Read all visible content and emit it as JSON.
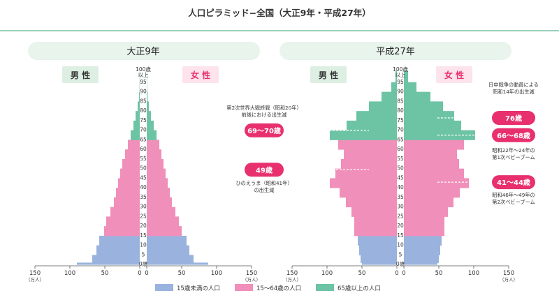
{
  "header": {
    "title": "人口ピラミッド−全国（大正9年・平成27年）"
  },
  "colors": {
    "young": "#9ab3de",
    "working": "#f08fba",
    "old": "#6cc4a4",
    "accent_text": "#e8306e",
    "male_bg": "#e6f5ea",
    "female_bg": "#fde5ee",
    "rule": "#5ab58e"
  },
  "chart_data": [
    {
      "type": "bar",
      "title": "大正9年",
      "male_label": "男 性",
      "female_label": "女 性",
      "unit": "（万人）",
      "age_axis_labels": [
        "0歳",
        "5",
        "10",
        "15",
        "20",
        "25",
        "30",
        "35",
        "40",
        "45",
        "50",
        "55",
        "60",
        "65",
        "70",
        "75",
        "80",
        "85",
        "90",
        "95",
        "100歳\n以上"
      ],
      "age_ticks": [
        0,
        5,
        10,
        15,
        20,
        25,
        30,
        35,
        40,
        45,
        50,
        55,
        60,
        65,
        70,
        75,
        80,
        85,
        90,
        95,
        100
      ],
      "x_ticks": [
        150,
        100,
        50,
        0
      ],
      "xlim": [
        0,
        150
      ],
      "age_bands": [
        [
          0,
          4
        ],
        [
          5,
          9
        ],
        [
          10,
          14
        ],
        [
          15,
          19
        ],
        [
          20,
          24
        ],
        [
          25,
          29
        ],
        [
          30,
          34
        ],
        [
          35,
          39
        ],
        [
          40,
          44
        ],
        [
          45,
          49
        ],
        [
          50,
          54
        ],
        [
          55,
          59
        ],
        [
          60,
          64
        ],
        [
          65,
          69
        ],
        [
          70,
          74
        ],
        [
          75,
          79
        ],
        [
          80,
          84
        ],
        [
          85,
          89
        ],
        [
          90,
          94
        ],
        [
          95,
          99
        ]
      ],
      "male_values": [
        68,
        62,
        58,
        51,
        48,
        42,
        37,
        34,
        31,
        28,
        25,
        21,
        17,
        13,
        9,
        6,
        3,
        1,
        0.3,
        0.1
      ],
      "female_values": [
        67,
        61,
        57,
        50,
        46,
        41,
        36,
        33,
        30,
        27,
        24,
        21,
        18,
        14,
        10,
        6,
        3,
        1.2,
        0.4,
        0.1
      ],
      "age0_male": 90,
      "age0_female": 88
    },
    {
      "type": "bar",
      "title": "平成27年",
      "male_label": "男 性",
      "female_label": "女 性",
      "unit": "（万人）",
      "age_axis_labels": [
        "0歳",
        "5",
        "10",
        "15",
        "20",
        "25",
        "30",
        "35",
        "40",
        "45",
        "50",
        "55",
        "60",
        "65",
        "70",
        "75",
        "80",
        "85",
        "90",
        "95",
        "100歳\n以上"
      ],
      "age_ticks": [
        0,
        5,
        10,
        15,
        20,
        25,
        30,
        35,
        40,
        45,
        50,
        55,
        60,
        65,
        70,
        75,
        80,
        85,
        90,
        95,
        100
      ],
      "x_ticks": [
        150,
        100,
        50,
        0
      ],
      "xlim": [
        0,
        150
      ],
      "age_bands": [
        [
          0,
          4
        ],
        [
          5,
          9
        ],
        [
          10,
          14
        ],
        [
          15,
          19
        ],
        [
          20,
          24
        ],
        [
          25,
          29
        ],
        [
          30,
          34
        ],
        [
          35,
          39
        ],
        [
          40,
          44
        ],
        [
          45,
          49
        ],
        [
          50,
          54
        ],
        [
          55,
          59
        ],
        [
          60,
          64
        ],
        [
          65,
          69
        ],
        [
          70,
          74
        ],
        [
          75,
          79
        ],
        [
          80,
          84
        ],
        [
          85,
          89
        ],
        [
          90,
          94
        ],
        [
          95,
          99
        ]
      ],
      "male_values": [
        52,
        54,
        56,
        61,
        61,
        65,
        73,
        82,
        96,
        88,
        80,
        76,
        84,
        96,
        72,
        58,
        40,
        22,
        8,
        2
      ],
      "female_values": [
        50,
        52,
        54,
        58,
        58,
        63,
        71,
        80,
        93,
        86,
        79,
        76,
        86,
        102,
        82,
        72,
        56,
        38,
        18,
        6
      ],
      "age0_male": 50,
      "age0_female": 48,
      "annotations_left": [
        {
          "note": "第2次世界大戦終戦（昭和20年）\n前後における出生減",
          "badge": "69〜70歳",
          "age": 69.5
        },
        {
          "note": "ひのえうま（昭和41年）\nの出生減",
          "badge": "49歳",
          "age": 49
        }
      ],
      "annotations_right": [
        {
          "note": "日中戦争の動員による\n昭和14年の出生減",
          "badge": "76歳",
          "age": 76
        },
        {
          "note": "昭和22年〜24年の\n第1次ベビーブーム",
          "badge": "66〜68歳",
          "age": 67
        },
        {
          "note": "昭和46年〜49年の\n第2次ベビーブーム",
          "badge": "41〜44歳",
          "age": 42.5
        }
      ]
    }
  ],
  "legend": [
    {
      "key": "young",
      "label": "15歳未満の人口"
    },
    {
      "key": "working",
      "label": "15〜64歳の人口"
    },
    {
      "key": "old",
      "label": "65歳以上の人口"
    }
  ]
}
